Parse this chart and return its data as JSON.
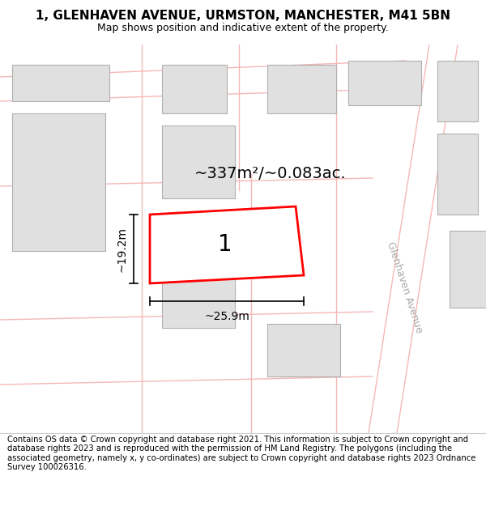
{
  "title": "1, GLENHAVEN AVENUE, URMSTON, MANCHESTER, M41 5BN",
  "subtitle": "Map shows position and indicative extent of the property.",
  "footer": "Contains OS data © Crown copyright and database right 2021. This information is subject to Crown copyright and database rights 2023 and is reproduced with the permission of HM Land Registry. The polygons (including the associated geometry, namely x, y co-ordinates) are subject to Crown copyright and database rights 2023 Ordnance Survey 100026316.",
  "background_color": "#ffffff",
  "map_bg": "#ffffff",
  "building_fill": "#e0e0e0",
  "building_edge": "#b0b0b0",
  "road_line_color": "#f5b8b8",
  "highlight_fill": "#ffffff",
  "highlight_edge": "#ff0000",
  "highlight_lw": 2.0,
  "area_text": "~337m²/~0.083ac.",
  "width_text": "~25.9m",
  "height_text": "~19.2m",
  "number_text": "1",
  "road_label": "Glenhaven Avenue",
  "title_fontsize": 11,
  "subtitle_fontsize": 9,
  "footer_fontsize": 7.2,
  "title_color": "#000000",
  "dim_color": "#000000",
  "road_label_color": "#aaaaaa",
  "road_label_fontsize": 9,
  "area_fontsize": 14,
  "number_fontsize": 20,
  "dim_fontsize": 10
}
